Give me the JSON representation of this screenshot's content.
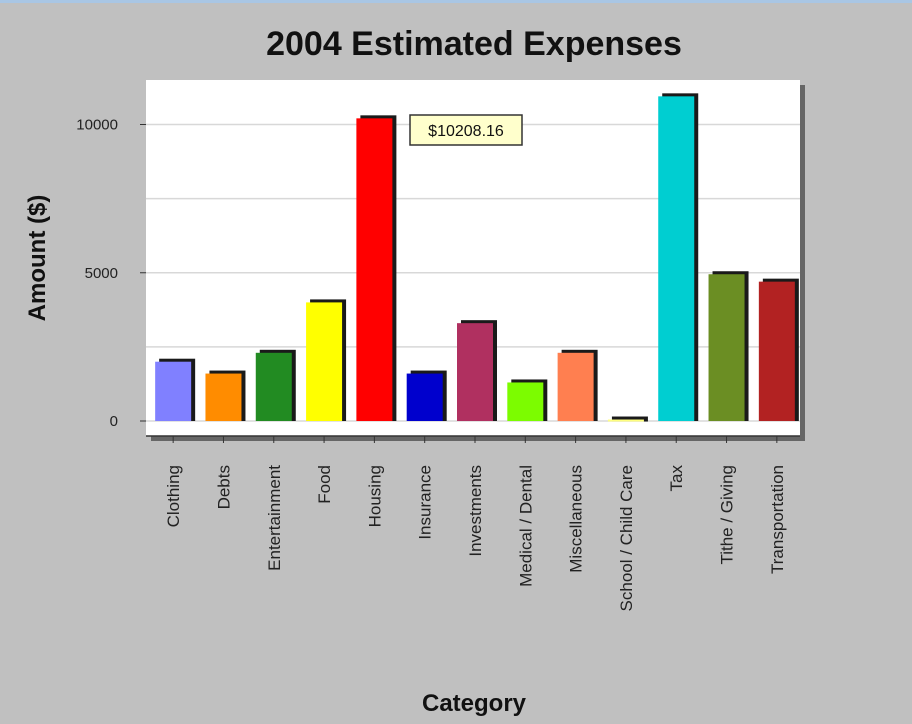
{
  "chart_data": {
    "type": "bar",
    "title": "2004 Estimated Expenses",
    "xlabel": "Category",
    "ylabel": "Amount ($)",
    "ylim": [
      0,
      11400
    ],
    "yticks": [
      0,
      5000,
      10000
    ],
    "grid": true,
    "categories": [
      "Clothing",
      "Debts",
      "Entertainment",
      "Food",
      "Housing",
      "Insurance",
      "Investments",
      "Medical / Dental",
      "Miscellaneous",
      "School / Child Care",
      "Tax",
      "Tithe / Giving",
      "Transportation"
    ],
    "values": [
      2000,
      1600,
      2300,
      4000,
      10208.16,
      1600,
      3300,
      1300,
      2300,
      50,
      10950,
      4950,
      4700
    ],
    "colors": [
      "#8080ff",
      "#ff8c00",
      "#228b22",
      "#ffff00",
      "#ff0000",
      "#0000cd",
      "#b03060",
      "#7cfc00",
      "#ff7f50",
      "#ffff80",
      "#00ced1",
      "#6b8e23",
      "#b22222"
    ],
    "tooltip": {
      "text": "$10208.16",
      "category": "Housing"
    }
  }
}
